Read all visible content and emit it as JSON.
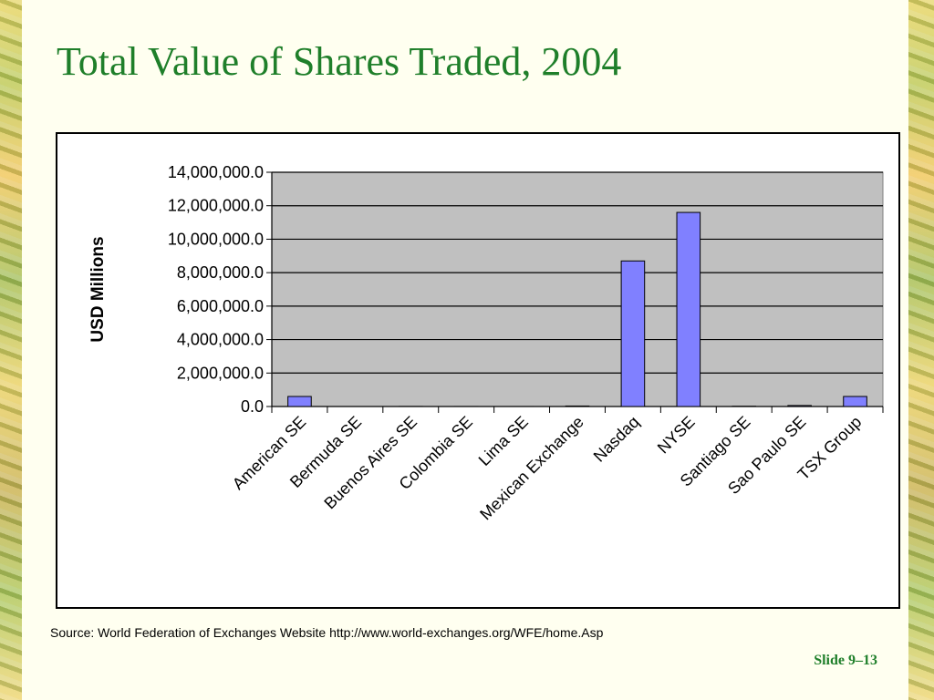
{
  "slide": {
    "title": "Total Value of Shares Traded, 2004",
    "source": "Source:  World Federation of Exchanges Website  http://www.world-exchanges.org/WFE/home.Asp",
    "slide_number": "Slide 9–13"
  },
  "colors": {
    "title": "#1f7f2a",
    "bar_fill": "#8080ff",
    "plot_background": "#c0c0c0"
  },
  "chart_data": {
    "type": "bar",
    "title": "",
    "xlabel": "",
    "ylabel": "USD Millions",
    "ylim": [
      0,
      14000000
    ],
    "yticks": [
      0,
      2000000,
      4000000,
      6000000,
      8000000,
      10000000,
      12000000,
      14000000
    ],
    "ytick_labels": [
      "0.0",
      "2,000,000.0",
      "4,000,000.0",
      "6,000,000.0",
      "8,000,000.0",
      "10,000,000.0",
      "12,000,000.0",
      "14,000,000.0"
    ],
    "grid": true,
    "legend": "none",
    "categories": [
      "American SE",
      "Bermuda SE",
      "Buenos Aires SE",
      "Colombia SE",
      "Lima SE",
      "Mexican Exchange",
      "Nasdaq",
      "NYSE",
      "Santiago SE",
      "Sao Paulo SE",
      "TSX Group"
    ],
    "values": [
      600000,
      0,
      5000,
      2000,
      1000,
      30000,
      8700000,
      11600000,
      15000,
      60000,
      600000
    ]
  }
}
